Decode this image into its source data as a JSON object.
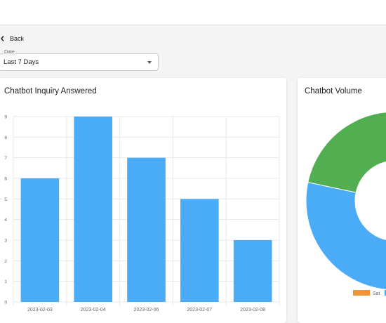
{
  "nav": {
    "back_label": "Back"
  },
  "filter": {
    "label": "Date",
    "value": "Last 7 Days"
  },
  "bar_card": {
    "title": "Chatbot Inquiry Answered"
  },
  "donut_card": {
    "title": "Chatbot Volume"
  },
  "chart_data": [
    {
      "type": "bar",
      "title": "Chatbot Inquiry Answered",
      "categories": [
        "2023-02-03",
        "2023-02-04",
        "2023-02-06",
        "2023-02-07",
        "2023-02-08"
      ],
      "values": [
        6,
        9,
        7,
        5,
        3
      ],
      "ylim": [
        0,
        9
      ],
      "yticks": [
        0,
        1,
        2,
        3,
        4,
        5,
        6,
        7,
        8,
        9
      ],
      "grid": true,
      "color": "#4aabf7"
    },
    {
      "type": "pie",
      "title": "Chatbot Volume",
      "style": "doughnut",
      "slices": [
        {
          "color": "#4aabf7",
          "value": 0.35
        },
        {
          "color": "#53ae52",
          "value": 0.4
        }
      ],
      "legend": [
        {
          "label": "Sat",
          "color": "#f0953a"
        },
        {
          "label": "",
          "color": "#4aabf7"
        }
      ],
      "legend_placement": "bottom"
    }
  ]
}
